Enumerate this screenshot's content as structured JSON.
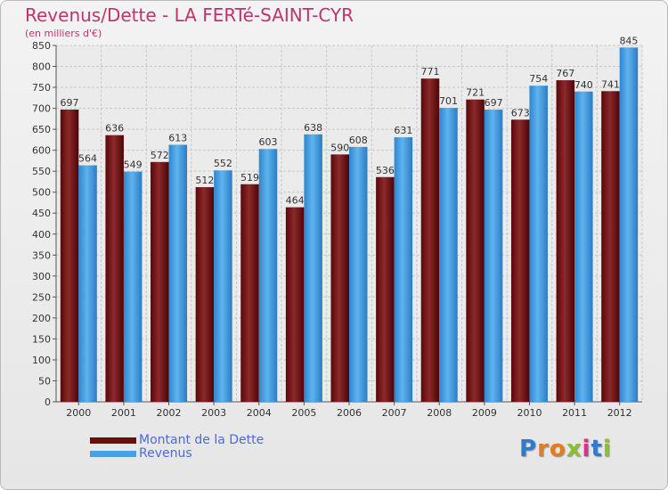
{
  "header": {
    "title": "Revenus/Dette - LA FERTé-SAINT-CYR",
    "subtitle": "(en milliers d'€)"
  },
  "colors": {
    "dette": "#6e0d10",
    "revenus": "#4aa0e0",
    "title": "#c0336f",
    "legend_text": "#4d6bd8"
  },
  "legend": {
    "items": [
      {
        "label": "Montant de la Dette"
      },
      {
        "label": "Revenus"
      }
    ]
  },
  "logo": {
    "text": "Proxiti"
  },
  "chart_data": {
    "type": "bar",
    "categories": [
      "2000",
      "2001",
      "2002",
      "2003",
      "2004",
      "2005",
      "2006",
      "2007",
      "2008",
      "2009",
      "2010",
      "2011",
      "2012"
    ],
    "series": [
      {
        "name": "Montant de la Dette",
        "values": [
          697,
          636,
          572,
          512,
          519,
          464,
          590,
          536,
          771,
          721,
          673,
          767,
          741
        ]
      },
      {
        "name": "Revenus",
        "values": [
          564,
          549,
          613,
          552,
          603,
          638,
          608,
          631,
          701,
          697,
          754,
          740,
          845
        ]
      }
    ],
    "ylim": [
      0,
      850
    ],
    "yticks": [
      0,
      50,
      100,
      150,
      200,
      250,
      300,
      350,
      400,
      450,
      500,
      550,
      600,
      650,
      700,
      750,
      800,
      850
    ],
    "grid": true,
    "legend_position": "bottom-left"
  }
}
